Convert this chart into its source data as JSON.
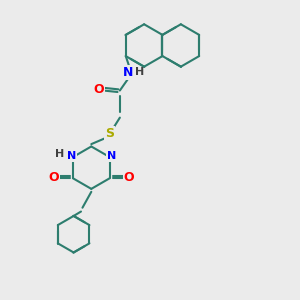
{
  "background_color": "#ebebeb",
  "bond_color": "#2d7d6e",
  "bond_width": 1.5,
  "atom_colors": {
    "O": "#ff0000",
    "N": "#0000ff",
    "S": "#aaaa00",
    "H": "#404040",
    "C": "#2d7d6e"
  },
  "font_size": 8,
  "figsize": [
    3.0,
    3.0
  ],
  "dpi": 100
}
